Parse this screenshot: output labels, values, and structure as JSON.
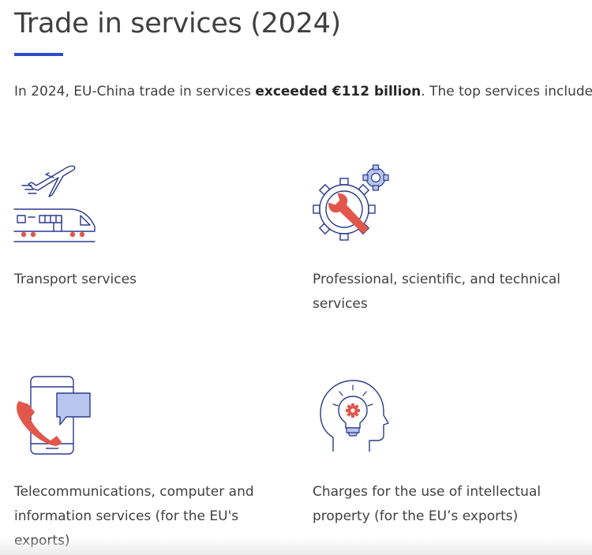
{
  "page": {
    "title": "Trade in services (2024)",
    "intro": {
      "before": "In 2024, EU-China trade in services ",
      "bold": "exceeded €112 billion",
      "after": ". The top services included:"
    }
  },
  "colors": {
    "accent": "#2e4ad1",
    "icon_line": "#2b3a8c",
    "icon_red": "#e2574c",
    "icon_light": "#b8c6ef"
  },
  "services": [
    {
      "label": "Transport services",
      "icon": "plane-train-icon"
    },
    {
      "label": "Professional, scientific, and technical services",
      "icon": "gear-wrench-icon"
    },
    {
      "label": "Telecommunications, computer and information services (for the EU's exports)",
      "icon": "phone-chat-icon"
    },
    {
      "label": "Charges for the use of intellectual property (for the EU’s exports)",
      "icon": "head-lightbulb-icon"
    }
  ]
}
